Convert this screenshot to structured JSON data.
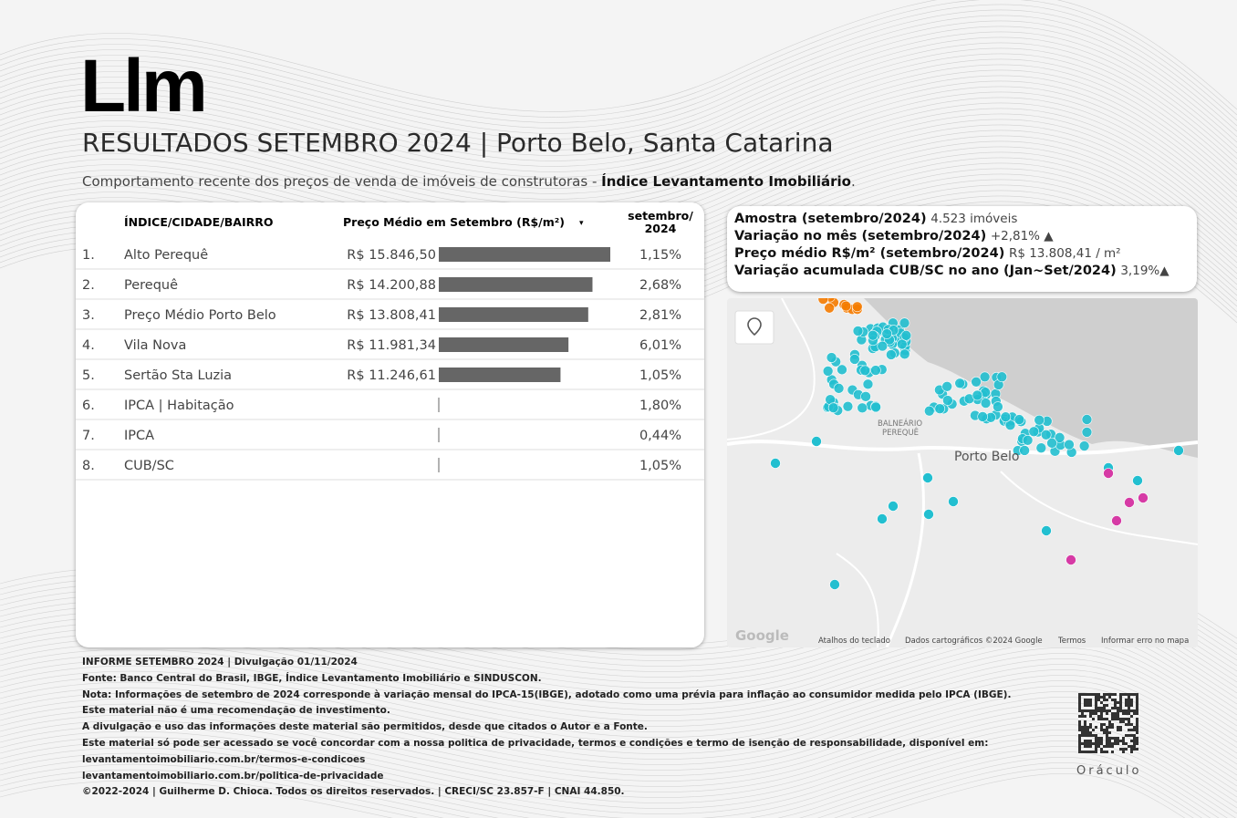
{
  "header": {
    "logo": "Llm",
    "title": "RESULTADOS SETEMBRO 2024 | Porto Belo, Santa Catarina",
    "subtitle": "Comportamento recente dos preços de venda de imóveis de construtoras - ",
    "subtitle_bold": "Índice Levantamento Imobiliário",
    "subtitle_end": "."
  },
  "table": {
    "columns": [
      "ÍNDICE/CIDADE/BAIRRO",
      "Preço Médio em Setembro (R$/m²)",
      "▾",
      "setembro/ 2024"
    ],
    "rows": [
      {
        "rank": "1.",
        "name": "Alto Perequê",
        "price": 15846.5,
        "price_label": "R$ 15.846,50",
        "change": "1,15%"
      },
      {
        "rank": "2.",
        "name": "Perequê",
        "price": 14200.88,
        "price_label": "R$ 14.200,88",
        "change": "2,68%"
      },
      {
        "rank": "3.",
        "name": "Preço Médio Porto Belo",
        "price": 13808.41,
        "price_label": "R$ 13.808,41",
        "change": "2,81%"
      },
      {
        "rank": "4.",
        "name": "Vila Nova",
        "price": 11981.34,
        "price_label": "R$ 11.981,34",
        "change": "6,01%"
      },
      {
        "rank": "5.",
        "name": "Sertão Sta Luzia",
        "price": 11246.61,
        "price_label": "R$ 11.246,61",
        "change": "1,05%"
      },
      {
        "rank": "6.",
        "name": "IPCA | Habitação",
        "price": null,
        "price_label": null,
        "change": "1,80%"
      },
      {
        "rank": "7.",
        "name": "IPCA",
        "price": null,
        "price_label": null,
        "change": "0,44%"
      },
      {
        "rank": "8.",
        "name": "CUB/SC",
        "price": null,
        "price_label": null,
        "change": "1,05%"
      }
    ]
  },
  "summary": [
    {
      "label": "Amostra (setembro/2024)",
      "value": "4.523 imóveis"
    },
    {
      "label": "Variação no mês (setembro/2024)",
      "value": "+2,81% ▲"
    },
    {
      "label": "Preço médio R$/m² (setembro/2024)",
      "value": "R$ 13.808,41 / m²"
    },
    {
      "label": "Variação acumulada CUB/SC no ano (Jan~Set/2024)",
      "value": "3,19%▲"
    }
  ],
  "map": {
    "place_1": "BALNEÁRIO",
    "place_2": "PEREQUÊ",
    "city": "Porto Belo",
    "brand": "Google",
    "attribution": [
      "Atalhos do teclado",
      "Dados cartográficos ©2024 Google",
      "Termos",
      "Informar erro no mapa"
    ]
  },
  "footer": [
    "INFORME SETEMBRO 2024 | Divulgação 01/11/2024",
    "Fonte: Banco Central do Brasil, IBGE, Índice Levantamento Imobiliário e SINDUSCON.",
    "Nota: Informações de setembro de 2024 corresponde à variação mensal do IPCA-15(IBGE), adotado como uma prévia para inflação ao consumidor medida pelo IPCA (IBGE).",
    "Este material não é uma recomendação de investimento.",
    "A divulgação e uso das informações deste material são permitidos, desde que citados o Autor e a Fonte.",
    "Este material só pode ser acessado se você concordar com a nossa politica de privacidade, termos e condições e termo de isenção de responsabilidade, disponível em:",
    "levantamentoimobiliario.com.br/termos-e-condicoes",
    "levantamentoimobiliario.com.br/politica-de-privacidade",
    "©2022-2024 | Guilherme D. Chioca. Todos os direitos reservados. | CRECI/SC 23.857-F | CNAI 44.850."
  ],
  "brand": "Oráculo"
}
